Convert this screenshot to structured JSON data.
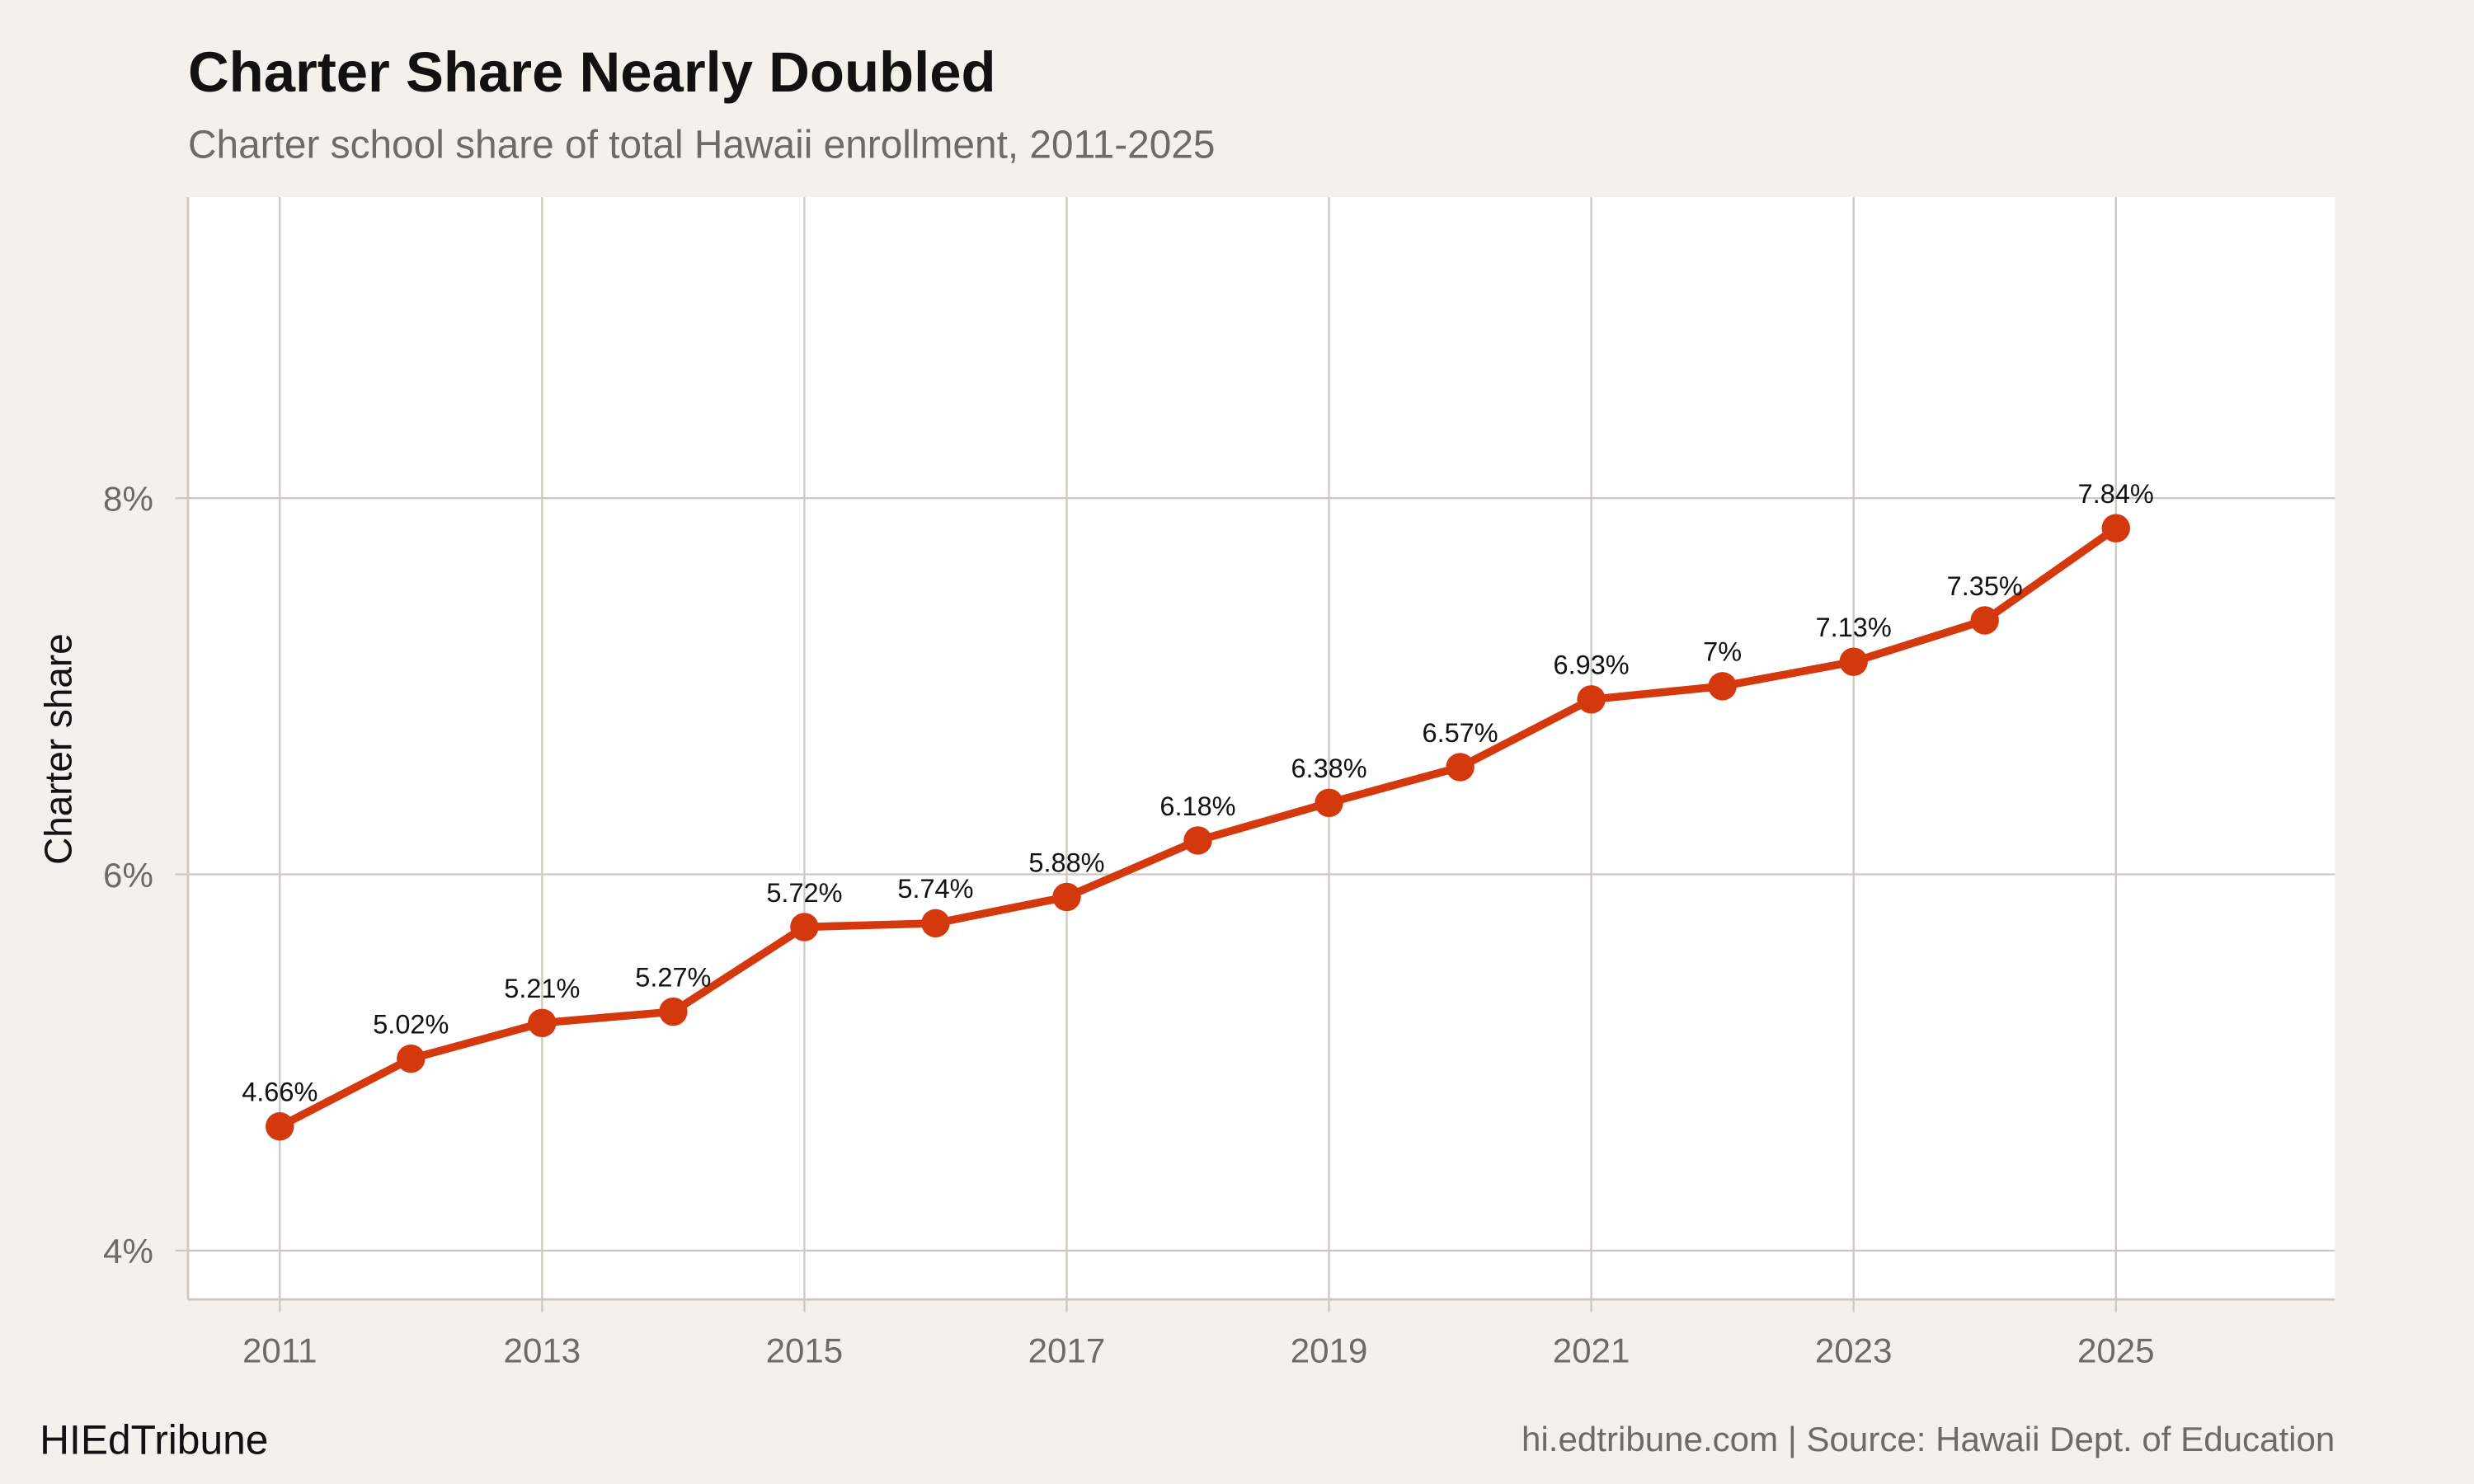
{
  "chart_data": {
    "type": "line",
    "title": "Charter Share Nearly Doubled",
    "subtitle": "Charter school share of total Hawaii enrollment, 2011-2025",
    "xlabel": "",
    "ylabel": "Charter share",
    "x": [
      2011,
      2012,
      2013,
      2014,
      2015,
      2016,
      2017,
      2018,
      2019,
      2020,
      2021,
      2022,
      2023,
      2024,
      2025
    ],
    "values": [
      4.66,
      5.02,
      5.21,
      5.27,
      5.72,
      5.74,
      5.88,
      6.18,
      6.38,
      6.57,
      6.93,
      7.0,
      7.13,
      7.35,
      7.84
    ],
    "data_labels": [
      "4.66%",
      "5.02%",
      "5.21%",
      "5.27%",
      "5.72%",
      "5.74%",
      "5.88%",
      "6.18%",
      "6.38%",
      "6.57%",
      "6.93%",
      "7%",
      "7.13%",
      "7.35%",
      "7.84%"
    ],
    "xticks": [
      "2011",
      "2013",
      "2015",
      "2017",
      "2019",
      "2021",
      "2023",
      "2025"
    ],
    "yticks": [
      "4%",
      "6%",
      "8%"
    ],
    "xlim": [
      2010.3,
      2026.67
    ],
    "ylim": [
      3.74,
      9.6
    ],
    "grid": true,
    "line_color": "#d4380d",
    "panel_color": "#ffffff",
    "background_color": "#f4f1ec",
    "grid_color": "#cdc8c0"
  },
  "footer": {
    "brand": "HIEdTribune",
    "source": "hi.edtribune.com | Source: Hawaii Dept. of Education"
  }
}
